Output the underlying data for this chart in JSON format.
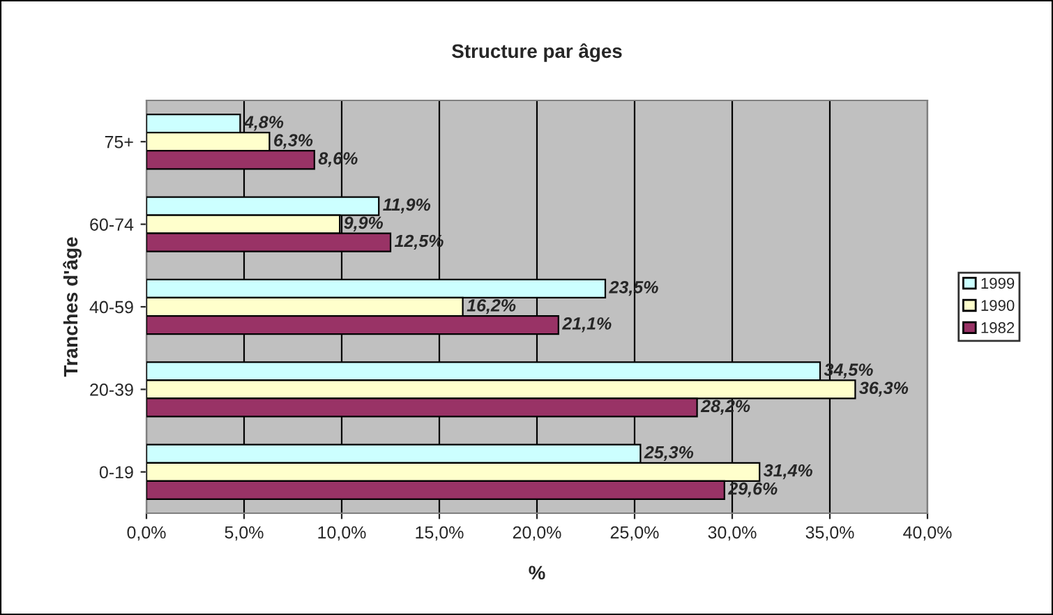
{
  "chart_data": {
    "type": "bar",
    "orientation": "horizontal",
    "title": "Structure par âges",
    "xlabel": "%",
    "ylabel": "Tranches d'âge",
    "categories": [
      "75+",
      "60-74",
      "40-59",
      "20-39",
      "0-19"
    ],
    "series": [
      {
        "name": "1999",
        "color": "#ccffff",
        "values": [
          4.8,
          11.9,
          23.5,
          34.5,
          25.3
        ],
        "value_labels": [
          "4,8%",
          "11,9%",
          "23,5%",
          "34,5%",
          "25,3%"
        ]
      },
      {
        "name": "1990",
        "color": "#ffffcc",
        "values": [
          6.3,
          9.9,
          16.2,
          36.3,
          31.4
        ],
        "value_labels": [
          "6,3%",
          "9,9%",
          "16,2%",
          "36,3%",
          "31,4%"
        ]
      },
      {
        "name": "1982",
        "color": "#993366",
        "values": [
          8.6,
          12.5,
          21.1,
          28.2,
          29.6
        ],
        "value_labels": [
          "8,6%",
          "12,5%",
          "21,1%",
          "28,2%",
          "29,6%"
        ]
      }
    ],
    "xlim": [
      0,
      40
    ],
    "xticks": [
      {
        "value": 0,
        "label": "0,0%"
      },
      {
        "value": 5,
        "label": "5,0%"
      },
      {
        "value": 10,
        "label": "10,0%"
      },
      {
        "value": 15,
        "label": "15,0%"
      },
      {
        "value": 20,
        "label": "20,0%"
      },
      {
        "value": 25,
        "label": "25,0%"
      },
      {
        "value": 30,
        "label": "30,0%"
      },
      {
        "value": 35,
        "label": "35,0%"
      },
      {
        "value": 40,
        "label": "40,0%"
      }
    ],
    "grid": "x",
    "legend": "right"
  }
}
